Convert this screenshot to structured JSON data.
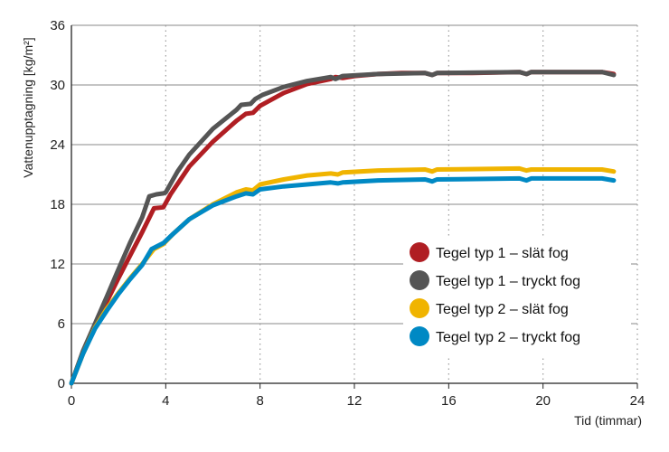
{
  "chart_data": {
    "type": "line",
    "xlabel": "Tid (timmar)",
    "ylabel": "Vattenupptagning [kg/m²]",
    "xlim": [
      0,
      24
    ],
    "ylim": [
      0,
      36
    ],
    "xticks": [
      "0",
      "4",
      "8",
      "12",
      "16",
      "20",
      "24"
    ],
    "yticks": [
      "0",
      "6",
      "12",
      "18",
      "24",
      "30",
      "36"
    ],
    "grid": {
      "horizontal": "solid",
      "vertical": "dotted"
    },
    "legend_position": "bottom-right",
    "series": [
      {
        "name": "Tegel typ 1 – slät fog",
        "color": "#B01E23",
        "points": [
          [
            0,
            0
          ],
          [
            0.5,
            3.2
          ],
          [
            1,
            5.8
          ],
          [
            1.5,
            8.2
          ],
          [
            2,
            10.6
          ],
          [
            2.5,
            12.9
          ],
          [
            3,
            15.2
          ],
          [
            3.5,
            17.6
          ],
          [
            3.9,
            17.7
          ],
          [
            4.2,
            19
          ],
          [
            5,
            21.8
          ],
          [
            6,
            24.3
          ],
          [
            7,
            26.4
          ],
          [
            7.4,
            27.1
          ],
          [
            7.7,
            27.2
          ],
          [
            8,
            27.9
          ],
          [
            9,
            29.2
          ],
          [
            10,
            30.1
          ],
          [
            11,
            30.6
          ],
          [
            11.2,
            30.8
          ],
          [
            11.5,
            30.7
          ],
          [
            12,
            30.9
          ],
          [
            13,
            31.1
          ],
          [
            14,
            31.2
          ],
          [
            15,
            31.2
          ],
          [
            15.3,
            31
          ],
          [
            15.5,
            31.2
          ],
          [
            17,
            31.2
          ],
          [
            19,
            31.3
          ],
          [
            19.3,
            31.1
          ],
          [
            19.5,
            31.3
          ],
          [
            21,
            31.3
          ],
          [
            22.5,
            31.3
          ],
          [
            23,
            31.1
          ]
        ]
      },
      {
        "name": "Tegel typ 1 – tryckt fog",
        "color": "#555555",
        "points": [
          [
            0,
            0
          ],
          [
            0.5,
            3.3
          ],
          [
            1,
            6
          ],
          [
            1.5,
            8.7
          ],
          [
            2,
            11.5
          ],
          [
            2.5,
            14.2
          ],
          [
            3,
            16.7
          ],
          [
            3.3,
            18.8
          ],
          [
            3.6,
            19
          ],
          [
            3.9,
            19.1
          ],
          [
            4,
            19.2
          ],
          [
            4.5,
            21.3
          ],
          [
            5,
            23
          ],
          [
            6,
            25.6
          ],
          [
            7,
            27.5
          ],
          [
            7.2,
            28
          ],
          [
            7.6,
            28.1
          ],
          [
            7.8,
            28.6
          ],
          [
            8.1,
            29
          ],
          [
            9,
            29.8
          ],
          [
            10,
            30.4
          ],
          [
            11,
            30.8
          ],
          [
            11.2,
            30.6
          ],
          [
            11.5,
            30.9
          ],
          [
            13,
            31.1
          ],
          [
            15,
            31.2
          ],
          [
            15.3,
            31
          ],
          [
            15.5,
            31.2
          ],
          [
            19,
            31.3
          ],
          [
            19.3,
            31.1
          ],
          [
            19.5,
            31.3
          ],
          [
            22.5,
            31.3
          ],
          [
            23,
            31
          ]
        ]
      },
      {
        "name": "Tegel typ 2 – slät fog",
        "color": "#F0B400",
        "points": [
          [
            0,
            0
          ],
          [
            0.5,
            3
          ],
          [
            1,
            5.6
          ],
          [
            1.5,
            7.5
          ],
          [
            2,
            9.1
          ],
          [
            2.5,
            10.6
          ],
          [
            3,
            12
          ],
          [
            3.5,
            13.5
          ],
          [
            3.9,
            14
          ],
          [
            4.3,
            15
          ],
          [
            5,
            16.5
          ],
          [
            6,
            18
          ],
          [
            7,
            19.2
          ],
          [
            7.4,
            19.5
          ],
          [
            7.7,
            19.4
          ],
          [
            8,
            20
          ],
          [
            9,
            20.5
          ],
          [
            10,
            20.9
          ],
          [
            11,
            21.1
          ],
          [
            11.3,
            21
          ],
          [
            11.5,
            21.2
          ],
          [
            13,
            21.4
          ],
          [
            15,
            21.5
          ],
          [
            15.3,
            21.3
          ],
          [
            15.5,
            21.5
          ],
          [
            19,
            21.6
          ],
          [
            19.3,
            21.4
          ],
          [
            19.5,
            21.5
          ],
          [
            22.5,
            21.5
          ],
          [
            23,
            21.3
          ]
        ]
      },
      {
        "name": "Tegel typ 2 – tryckt fog",
        "color": "#0089C4",
        "points": [
          [
            0,
            0
          ],
          [
            0.5,
            3
          ],
          [
            1,
            5.5
          ],
          [
            1.5,
            7.3
          ],
          [
            2,
            9
          ],
          [
            2.5,
            10.5
          ],
          [
            3,
            11.9
          ],
          [
            3.4,
            13.5
          ],
          [
            3.9,
            14.1
          ],
          [
            4.3,
            15
          ],
          [
            5,
            16.5
          ],
          [
            6,
            17.9
          ],
          [
            7,
            18.8
          ],
          [
            7.4,
            19.1
          ],
          [
            7.7,
            19
          ],
          [
            8,
            19.5
          ],
          [
            9,
            19.8
          ],
          [
            10,
            20
          ],
          [
            11,
            20.2
          ],
          [
            11.3,
            20.1
          ],
          [
            11.5,
            20.2
          ],
          [
            13,
            20.4
          ],
          [
            15,
            20.5
          ],
          [
            15.3,
            20.3
          ],
          [
            15.5,
            20.5
          ],
          [
            19,
            20.6
          ],
          [
            19.3,
            20.4
          ],
          [
            19.5,
            20.6
          ],
          [
            22.5,
            20.6
          ],
          [
            23,
            20.4
          ]
        ]
      }
    ]
  }
}
